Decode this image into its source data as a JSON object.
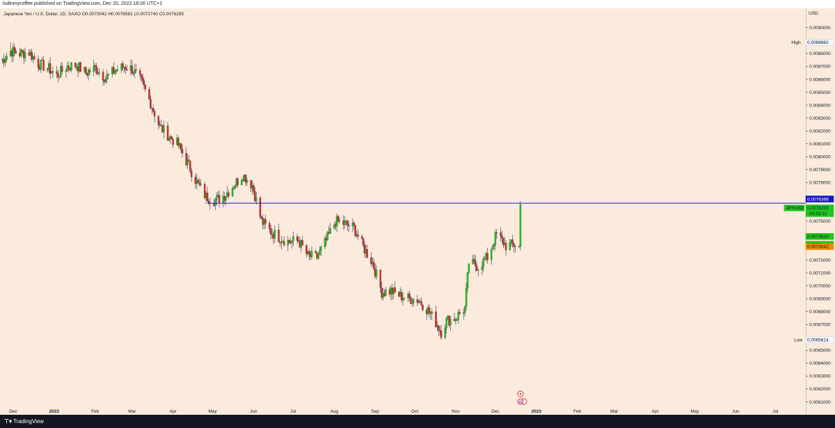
{
  "header": {
    "published_line": "ludinmycoffee published on TradingView.com, Dec 20, 2022 18:26 UTC+1"
  },
  "legend": {
    "line": "Japanese Yen / U.S. Dollar, 1D, SAXO O0.0073042 H0.0076581 L0.0072740 C0.0076295"
  },
  "footer": {
    "brand": "TradingView"
  },
  "colors": {
    "up": "#1ec61e",
    "down": "#d62b2b",
    "wick": "#2a2e39",
    "hline": "#1515c8",
    "background": "#faebdc"
  },
  "chart_data": {
    "type": "candlestick",
    "currency_label": "USD",
    "y_ticks": [
      "0.0090000",
      "0.0089000",
      "0.0088000",
      "0.0087000",
      "0.0086000",
      "0.0085000",
      "0.0084000",
      "0.0083000",
      "0.0082000",
      "0.0081000",
      "0.0080000",
      "0.0079000",
      "0.0078000",
      "0.0075000",
      "0.0072000",
      "0.0071000",
      "0.0070000",
      "0.0069000",
      "0.0068000",
      "0.0067000",
      "0.0065000",
      "0.0064000",
      "0.0063000",
      "0.0062000",
      "0.0061000"
    ],
    "x_labels": [
      "Dec",
      "2022",
      "Feb",
      "Mar",
      "Apr",
      "May",
      "Jun",
      "Jul",
      "Aug",
      "Sep",
      "Oct",
      "Nov",
      "Dec",
      "2023",
      "Feb",
      "Mar",
      "Apr",
      "May",
      "Jun",
      "Jul"
    ],
    "x_label_dates": [
      "2021-12-01",
      "2022-01-01",
      "2022-02-01",
      "2022-03-01",
      "2022-04-01",
      "2022-05-01",
      "2022-06-01",
      "2022-07-01",
      "2022-08-01",
      "2022-09-01",
      "2022-10-01",
      "2022-11-01",
      "2022-12-01",
      "2023-01-01",
      "2023-02-01",
      "2023-03-01",
      "2023-04-01",
      "2023-05-01",
      "2023-06-01",
      "2023-07-01"
    ],
    "x_range": [
      "2021-11-21",
      "2023-07-24"
    ],
    "y_range": [
      0.006,
      0.00915
    ],
    "price_tags": [
      {
        "label": "High",
        "value": 0.0088862,
        "text": "0.0088862",
        "style": "extreme"
      },
      {
        "label": "",
        "value": 0.0076399,
        "text": "0.0076399",
        "style": "blue"
      },
      {
        "label": "JPYUSD",
        "value": 0.0076295,
        "text": "0.0076295",
        "sub": "04:33:12",
        "style": "green"
      },
      {
        "label": "",
        "value": 0.007382,
        "text": "0.0073820",
        "style": "green"
      },
      {
        "label": "",
        "value": 0.007321,
        "text": "0.0073210",
        "style": "green"
      },
      {
        "label": "",
        "value": 0.0073042,
        "text": "0.0073042",
        "style": "orange"
      },
      {
        "label": "Low",
        "value": 0.0065814,
        "text": "0.0065814",
        "style": "extreme"
      }
    ],
    "horizontal_line": {
      "value": 0.0076399,
      "from": "2022-04-27"
    },
    "key_points": [
      [
        "2021-11-22",
        0.00874
      ],
      [
        "2021-11-29",
        0.00882
      ],
      [
        "2021-12-06",
        0.0088
      ],
      [
        "2021-12-13",
        0.00881
      ],
      [
        "2021-12-20",
        0.00872
      ],
      [
        "2021-12-27",
        0.00869
      ],
      [
        "2022-01-03",
        0.00863
      ],
      [
        "2022-01-11",
        0.0087
      ],
      [
        "2022-01-18",
        0.00871
      ],
      [
        "2022-01-25",
        0.00865
      ],
      [
        "2022-02-01",
        0.00869
      ],
      [
        "2022-02-09",
        0.00861
      ],
      [
        "2022-02-16",
        0.00867
      ],
      [
        "2022-02-23",
        0.0087
      ],
      [
        "2022-03-01",
        0.00868
      ],
      [
        "2022-03-08",
        0.00858
      ],
      [
        "2022-03-15",
        0.00842
      ],
      [
        "2022-03-22",
        0.00823
      ],
      [
        "2022-03-29",
        0.00816
      ],
      [
        "2022-04-05",
        0.00809
      ],
      [
        "2022-04-12",
        0.00795
      ],
      [
        "2022-04-19",
        0.0078
      ],
      [
        "2022-04-26",
        0.00769
      ],
      [
        "2022-05-03",
        0.00766
      ],
      [
        "2022-05-10",
        0.0077
      ],
      [
        "2022-05-17",
        0.00778
      ],
      [
        "2022-05-24",
        0.00786
      ],
      [
        "2022-05-31",
        0.00778
      ],
      [
        "2022-06-07",
        0.0075
      ],
      [
        "2022-06-14",
        0.00742
      ],
      [
        "2022-06-21",
        0.00737
      ],
      [
        "2022-06-28",
        0.00734
      ],
      [
        "2022-07-05",
        0.00735
      ],
      [
        "2022-07-12",
        0.00723
      ],
      [
        "2022-07-19",
        0.00722
      ],
      [
        "2022-07-26",
        0.00735
      ],
      [
        "2022-08-02",
        0.0075
      ],
      [
        "2022-08-09",
        0.00748
      ],
      [
        "2022-08-16",
        0.00745
      ],
      [
        "2022-08-23",
        0.0073
      ],
      [
        "2022-08-30",
        0.00718
      ],
      [
        "2022-09-06",
        0.00695
      ],
      [
        "2022-09-13",
        0.00696
      ],
      [
        "2022-09-20",
        0.00692
      ],
      [
        "2022-09-27",
        0.0069
      ],
      [
        "2022-10-04",
        0.00689
      ],
      [
        "2022-10-11",
        0.00681
      ],
      [
        "2022-10-18",
        0.0067
      ],
      [
        "2022-10-21",
        0.00664
      ],
      [
        "2022-10-25",
        0.00673
      ],
      [
        "2022-11-01",
        0.00675
      ],
      [
        "2022-11-08",
        0.00683
      ],
      [
        "2022-11-11",
        0.00718
      ],
      [
        "2022-11-18",
        0.00715
      ],
      [
        "2022-11-25",
        0.00722
      ],
      [
        "2022-12-02",
        0.0074
      ],
      [
        "2022-12-09",
        0.00731
      ],
      [
        "2022-12-16",
        0.00732
      ],
      [
        "2022-12-19",
        0.0073
      ],
      [
        "2022-12-20",
        0.00763
      ]
    ]
  }
}
